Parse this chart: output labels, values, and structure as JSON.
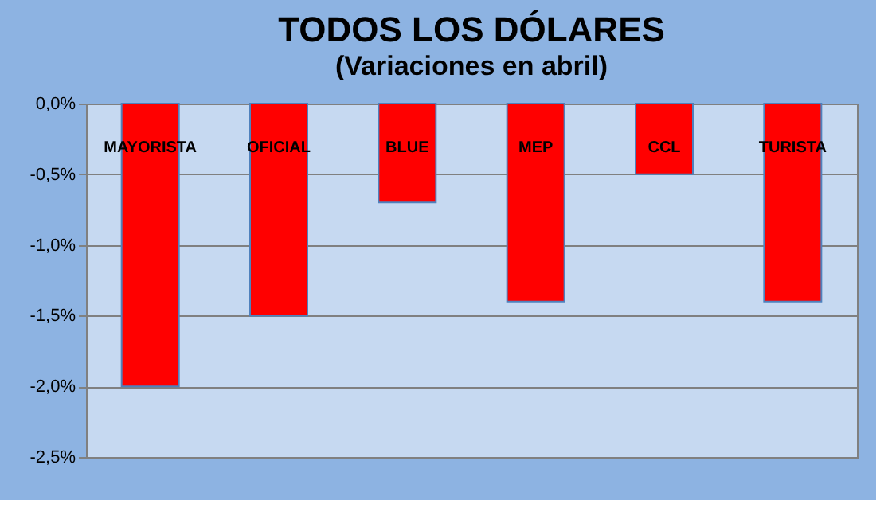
{
  "chart_data": {
    "type": "bar",
    "title": "TODOS LOS DÓLARES",
    "subtitle": "(Variaciones  en abril)",
    "categories": [
      "MAYORISTA",
      "OFICIAL",
      "BLUE",
      "MEP",
      "CCL",
      "TURISTA"
    ],
    "values": [
      -2.0,
      -1.5,
      -0.7,
      -1.4,
      -0.5,
      -1.4
    ],
    "color": "#ff0000",
    "ylim": [
      -2.5,
      0
    ],
    "yticks": [
      {
        "value": 0,
        "label": "0,0%"
      },
      {
        "value": -0.5,
        "label": "-0,5%"
      },
      {
        "value": -1.0,
        "label": "-1,0%"
      },
      {
        "value": -1.5,
        "label": "-1,5%"
      },
      {
        "value": -2.0,
        "label": "-2,0%"
      },
      {
        "value": -2.5,
        "label": "-2,5%"
      }
    ],
    "grid": "y"
  }
}
